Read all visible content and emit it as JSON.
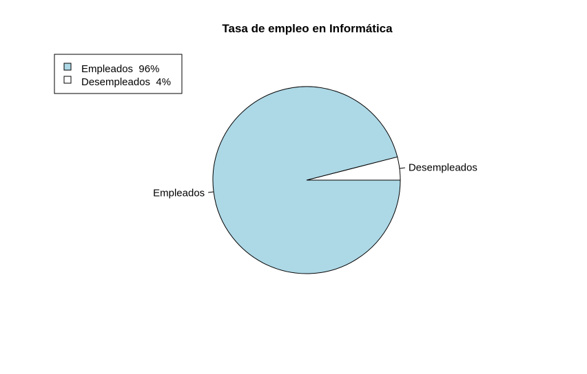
{
  "chart_data": {
    "type": "pie",
    "title": "Tasa de empleo en Informática",
    "slices": [
      {
        "label": "Empleados",
        "value": 96,
        "color": "#ADD8E6"
      },
      {
        "label": "Desempleados",
        "value": 4,
        "color": "#FFFFFF"
      }
    ],
    "legend": {
      "position": "top-left",
      "entries": [
        "Empleados  96%",
        "Desempleados  4%"
      ]
    }
  }
}
